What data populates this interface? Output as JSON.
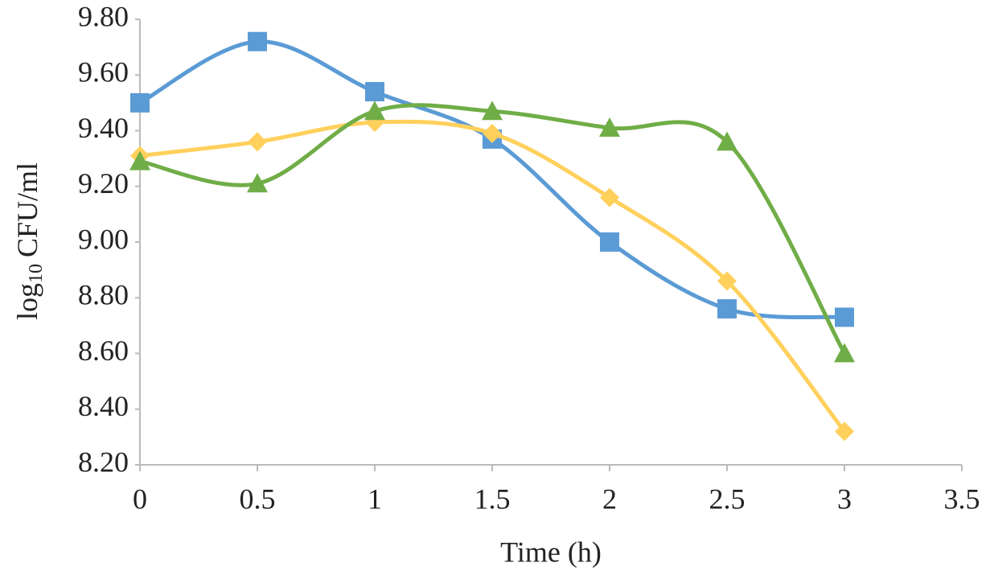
{
  "chart_data": {
    "type": "line",
    "x_label": "Time (h)",
    "y_label": [
      "log",
      "10",
      "CFU/ml"
    ],
    "x": [
      0,
      0.5,
      1,
      1.5,
      2,
      2.5,
      3
    ],
    "xlim": [
      0,
      3.5
    ],
    "xticks": [
      0,
      0.5,
      1,
      1.5,
      2,
      2.5,
      3,
      3.5
    ],
    "ylim": [
      8.2,
      9.8
    ],
    "yticks": [
      {
        "value": 8.2,
        "label": "8.20"
      },
      {
        "value": 8.4,
        "label": "8.40"
      },
      {
        "value": 8.6,
        "label": "8.60"
      },
      {
        "value": 8.8,
        "label": "8.80"
      },
      {
        "value": 9.0,
        "label": "9.00"
      },
      {
        "value": 9.2,
        "label": "9.20"
      },
      {
        "value": 9.4,
        "label": "9.40"
      },
      {
        "value": 9.6,
        "label": "9.60"
      },
      {
        "value": 9.8,
        "label": "9.80"
      }
    ],
    "smooth": true,
    "grid": false,
    "series": [
      {
        "color": "#5b9bd5",
        "marker": "square",
        "values": [
          9.5,
          9.72,
          9.54,
          9.37,
          9.0,
          8.76,
          8.73
        ]
      },
      {
        "color": "#ffd05c",
        "marker": "diamond",
        "values": [
          9.31,
          9.36,
          9.43,
          9.39,
          9.16,
          8.86,
          8.32
        ]
      },
      {
        "color": "#70ad47",
        "marker": "triangle",
        "values": [
          9.29,
          9.21,
          9.47,
          9.47,
          9.41,
          9.36,
          8.6
        ]
      }
    ]
  }
}
